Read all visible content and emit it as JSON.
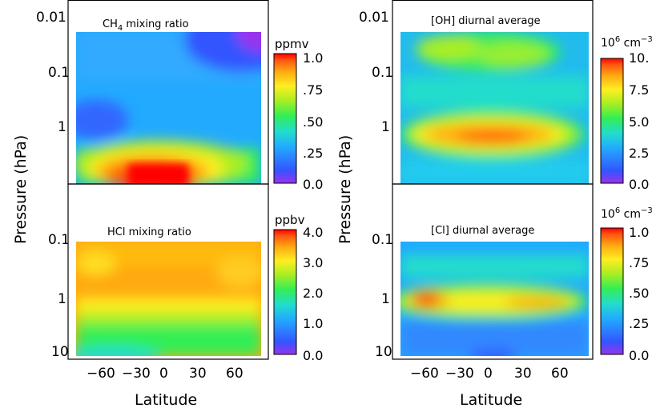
{
  "chart_data": [
    {
      "type": "heatmap",
      "title": "CH4 mixing ratio",
      "title_main": "CH",
      "title_sub": "4",
      "title_rest": " mixing ratio",
      "ylabel": "Pressure (hPa)",
      "y_scale": "log",
      "y_ticks": [
        "0.01",
        "0.1",
        "1"
      ],
      "colorbar": {
        "unit": "ppmv",
        "ticks": [
          "1.0",
          ".75",
          ".50",
          ".25",
          "0.0"
        ],
        "range": [
          0,
          1.0
        ]
      },
      "features": [
        {
          "description": "maximum over equator",
          "lat_range": [
            -30,
            30
          ],
          "pressure": 3.5,
          "value": 1.0
        },
        {
          "description": "minimum upper polar",
          "lat": 80,
          "pressure": 0.02,
          "value": 0.0
        }
      ]
    },
    {
      "type": "heatmap",
      "title": "HCl mixing ratio",
      "ylabel": "Pressure (hPa)",
      "xlabel": "Latitude",
      "y_scale": "log",
      "y_ticks": [
        "0.1",
        "1",
        "10"
      ],
      "x_ticks": [
        "−60",
        "−30",
        "0",
        "30",
        "60"
      ],
      "colorbar": {
        "unit": "ppbv",
        "ticks": [
          "4.0",
          "3.0",
          "2.0",
          "1.0",
          "0.0"
        ],
        "range": [
          0,
          4.0
        ]
      },
      "features": [
        {
          "description": "upper stratosphere plateau",
          "pressure_range": [
            0.1,
            1
          ],
          "value": 3.4
        },
        {
          "description": "lower levels",
          "pressure": 8,
          "value": 2.0
        }
      ]
    },
    {
      "type": "heatmap",
      "title": "[OH] diurnal average",
      "ylabel": "Pressure (hPa)",
      "y_scale": "log",
      "y_ticks": [
        "0.01",
        "0.1",
        "1"
      ],
      "colorbar": {
        "unit": "10⁶ cm⁻³",
        "unit_base": "10",
        "unit_exp": "6",
        "unit_mid": " cm",
        "unit_exp2": "−3",
        "ticks": [
          "10.",
          "7.5",
          "5.0",
          "2.5",
          "0.0"
        ],
        "range": [
          0,
          10
        ]
      },
      "features": [
        {
          "description": "maximum near 1.5 hPa",
          "lat_range": [
            -50,
            50
          ],
          "pressure": 1.5,
          "value": 8.5
        },
        {
          "description": "secondary maximum",
          "pressure": 0.04,
          "value": 6.5
        }
      ]
    },
    {
      "type": "heatmap",
      "title": "[Cl] diurnal average",
      "ylabel": "Pressure (hPa)",
      "xlabel": "Latitude",
      "y_scale": "log",
      "y_ticks": [
        "0.1",
        "1",
        "10"
      ],
      "x_ticks": [
        "−60",
        "−30",
        "0",
        "30",
        "60"
      ],
      "colorbar": {
        "unit": "10⁶ cm⁻³",
        "unit_base": "10",
        "unit_exp": "6",
        "unit_mid": " cm",
        "unit_exp2": "−3",
        "ticks": [
          "1.0",
          ".75",
          ".50",
          ".25",
          "0.0"
        ],
        "range": [
          0,
          1.0
        ]
      },
      "features": [
        {
          "description": "maximum near 1 hPa",
          "lat": -60,
          "pressure": 1,
          "value": 1.0
        },
        {
          "description": "band near 1 hPa",
          "lat_range": [
            -70,
            75
          ],
          "pressure": 1,
          "value": 0.85
        }
      ]
    }
  ],
  "colors": {
    "scale": [
      "#9933ee",
      "#3355ff",
      "#22aaff",
      "#22ddcc",
      "#33ee55",
      "#aaee22",
      "#ffee22",
      "#ffaa11",
      "#ff5511",
      "#ff0000"
    ]
  }
}
